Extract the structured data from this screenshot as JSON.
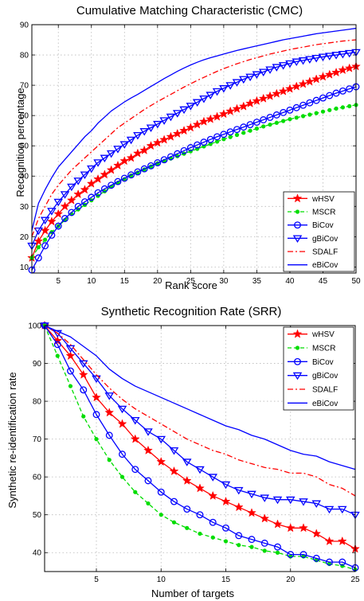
{
  "figure": {
    "background": "#ffffff"
  },
  "chart_data": [
    {
      "type": "line",
      "title": "Cumulative Matching Characteristic (CMC)",
      "xlabel": "Rank score",
      "ylabel": "Recognition percentage",
      "xlim": [
        1,
        50
      ],
      "ylim": [
        8,
        90
      ],
      "xticks": [
        5,
        10,
        15,
        20,
        25,
        30,
        35,
        40,
        45,
        50
      ],
      "yticks": [
        10,
        20,
        30,
        40,
        50,
        60,
        70,
        80,
        90
      ],
      "grid": true,
      "legend_position": "bottom-right",
      "series": [
        {
          "name": "wHSV",
          "color": "#ff0000",
          "line": "solid",
          "marker": "star",
          "x": [
            1,
            2,
            3,
            4,
            5,
            6,
            7,
            8,
            9,
            10,
            11,
            12,
            13,
            14,
            15,
            16,
            17,
            18,
            19,
            20,
            21,
            22,
            23,
            24,
            25,
            26,
            27,
            28,
            29,
            30,
            31,
            32,
            33,
            34,
            35,
            36,
            37,
            38,
            39,
            40,
            41,
            42,
            43,
            44,
            45,
            46,
            47,
            48,
            49,
            50
          ],
          "y": [
            13,
            18.5,
            22,
            25,
            27.5,
            30,
            32,
            34,
            35.5,
            37.5,
            39,
            40.5,
            42,
            43.5,
            45,
            46,
            47.5,
            48.5,
            50,
            51,
            52,
            53,
            54,
            55,
            56,
            57,
            58,
            58.8,
            59.6,
            60.5,
            61.4,
            62.2,
            63,
            64,
            64.8,
            65.6,
            66.4,
            67.2,
            68,
            68.8,
            69.6,
            70.4,
            71.2,
            72,
            72.8,
            73.5,
            74.2,
            75,
            75.6,
            76.2
          ]
        },
        {
          "name": "MSCR",
          "color": "#00dd00",
          "line": "dashed",
          "marker": "dot",
          "x": [
            1,
            2,
            3,
            4,
            5,
            6,
            7,
            8,
            9,
            10,
            11,
            12,
            13,
            14,
            15,
            16,
            17,
            18,
            19,
            20,
            21,
            22,
            23,
            24,
            25,
            26,
            27,
            28,
            29,
            30,
            31,
            32,
            33,
            34,
            35,
            36,
            37,
            38,
            39,
            40,
            41,
            42,
            43,
            44,
            45,
            46,
            47,
            48,
            49,
            50
          ],
          "y": [
            13,
            16.5,
            19,
            21.5,
            23.5,
            25.5,
            27.5,
            29,
            30.5,
            32,
            33.5,
            35,
            36.5,
            37.8,
            39,
            40.2,
            41.2,
            42.2,
            43.2,
            44.2,
            45,
            45.8,
            46.6,
            47.4,
            48.2,
            49,
            49.8,
            50.6,
            51.4,
            52.2,
            52.9,
            53.6,
            54.3,
            55,
            55.7,
            56.4,
            57,
            57.6,
            58.2,
            58.8,
            59.3,
            59.8,
            60.3,
            60.8,
            61.3,
            61.8,
            62.3,
            62.7,
            63.1,
            63.5
          ]
        },
        {
          "name": "BiCov",
          "color": "#0000ff",
          "line": "solid",
          "marker": "circle",
          "x": [
            1,
            2,
            3,
            4,
            5,
            6,
            7,
            8,
            9,
            10,
            11,
            12,
            13,
            14,
            15,
            16,
            17,
            18,
            19,
            20,
            21,
            22,
            23,
            24,
            25,
            26,
            27,
            28,
            29,
            30,
            31,
            32,
            33,
            34,
            35,
            36,
            37,
            38,
            39,
            40,
            41,
            42,
            43,
            44,
            45,
            46,
            47,
            48,
            49,
            50
          ],
          "y": [
            9,
            13,
            17,
            20.5,
            23.5,
            26,
            28,
            30,
            31.5,
            33,
            34.5,
            35.8,
            37,
            38.2,
            39.3,
            40.4,
            41.4,
            42.4,
            43.4,
            44.4,
            45.4,
            46.4,
            47.4,
            48.4,
            49.4,
            50.3,
            51.2,
            52.1,
            53,
            53.8,
            54.6,
            55.4,
            56.2,
            57,
            57.8,
            58.6,
            59.4,
            60.2,
            61,
            61.8,
            62.6,
            63.4,
            64.2,
            65,
            65.8,
            66.6,
            67.4,
            68.1,
            68.8,
            69.5
          ]
        },
        {
          "name": "gBiCov",
          "color": "#0000ff",
          "line": "solid",
          "marker": "triangle-down",
          "x": [
            1,
            2,
            3,
            4,
            5,
            6,
            7,
            8,
            9,
            10,
            11,
            12,
            13,
            14,
            15,
            16,
            17,
            18,
            19,
            20,
            21,
            22,
            23,
            24,
            25,
            26,
            27,
            28,
            29,
            30,
            31,
            32,
            33,
            34,
            35,
            36,
            37,
            38,
            39,
            40,
            41,
            42,
            43,
            44,
            45,
            46,
            47,
            48,
            49,
            50
          ],
          "y": [
            17,
            22,
            25.5,
            28.5,
            31.5,
            34,
            36.5,
            38.5,
            40.5,
            42.5,
            44.5,
            46,
            47.5,
            49,
            50.5,
            52,
            53.5,
            54.8,
            56,
            57.2,
            58.4,
            59.6,
            60.8,
            62,
            63.2,
            64.4,
            65.6,
            66.8,
            68,
            69,
            70,
            71,
            72,
            72.8,
            73.6,
            74.4,
            75.2,
            76,
            76.6,
            77.2,
            77.8,
            78.2,
            78.6,
            79,
            79.4,
            79.7,
            80,
            80.3,
            80.6,
            80.9
          ]
        },
        {
          "name": "SDALF",
          "color": "#ff0000",
          "line": "dashdot",
          "marker": "none",
          "x": [
            1,
            2,
            3,
            4,
            5,
            6,
            7,
            8,
            9,
            10,
            11,
            12,
            13,
            14,
            15,
            16,
            17,
            18,
            19,
            20,
            21,
            22,
            23,
            24,
            25,
            26,
            27,
            28,
            29,
            30,
            31,
            32,
            33,
            34,
            35,
            36,
            37,
            38,
            39,
            40,
            41,
            42,
            43,
            44,
            45,
            46,
            47,
            48,
            49,
            50
          ],
          "y": [
            20,
            26,
            30,
            34,
            37,
            39.5,
            42,
            44,
            46,
            48,
            50,
            52,
            54,
            56,
            57.5,
            59,
            60.5,
            62,
            63.3,
            64.6,
            65.8,
            67,
            68.2,
            69.4,
            70.5,
            71.6,
            72.6,
            73.6,
            74.6,
            75.5,
            76.3,
            77.1,
            77.8,
            78.5,
            79.1,
            79.7,
            80.3,
            80.8,
            81.3,
            81.8,
            82.2,
            82.6,
            83,
            83.4,
            83.7,
            84,
            84.3,
            84.6,
            84.8,
            85
          ]
        },
        {
          "name": "eBiCov",
          "color": "#0000ff",
          "line": "solid",
          "marker": "none",
          "x": [
            1,
            2,
            3,
            4,
            5,
            6,
            7,
            8,
            9,
            10,
            11,
            12,
            13,
            14,
            15,
            16,
            17,
            18,
            19,
            20,
            21,
            22,
            23,
            24,
            25,
            26,
            27,
            28,
            29,
            30,
            31,
            32,
            33,
            34,
            35,
            36,
            37,
            38,
            39,
            40,
            41,
            42,
            43,
            44,
            45,
            46,
            47,
            48,
            49,
            50
          ],
          "y": [
            22,
            31,
            35.5,
            39.5,
            43,
            45.5,
            48,
            50.5,
            53,
            55,
            57.5,
            59.5,
            61.5,
            63,
            64.5,
            65.8,
            67,
            68.3,
            69.6,
            70.9,
            72.2,
            73.4,
            74.6,
            75.7,
            76.7,
            77.6,
            78.4,
            79.1,
            79.7,
            80.3,
            80.9,
            81.5,
            82,
            82.5,
            83,
            83.5,
            84,
            84.5,
            85,
            85.4,
            85.8,
            86.2,
            86.6,
            87,
            87.3,
            87.6,
            87.9,
            88.2,
            88.5,
            88.8
          ]
        }
      ]
    },
    {
      "type": "line",
      "title": "Synthetic Recognition Rate (SRR)",
      "xlabel": "Number of targets",
      "ylabel": "Synthetic re-identification rate",
      "xlim": [
        1,
        25
      ],
      "ylim": [
        35,
        100
      ],
      "xticks": [
        5,
        10,
        15,
        20,
        25
      ],
      "yticks": [
        40,
        50,
        60,
        70,
        80,
        90,
        100
      ],
      "grid": true,
      "legend_position": "top-right",
      "series": [
        {
          "name": "wHSV",
          "color": "#ff0000",
          "line": "solid",
          "marker": "star",
          "x": [
            1,
            2,
            3,
            4,
            5,
            6,
            7,
            8,
            9,
            10,
            11,
            12,
            13,
            14,
            15,
            16,
            17,
            18,
            19,
            20,
            21,
            22,
            23,
            24,
            25
          ],
          "y": [
            100,
            96,
            92,
            87,
            81,
            77,
            74,
            70,
            67,
            64,
            61.5,
            59,
            57,
            55,
            53.5,
            52,
            50.5,
            49,
            47.5,
            46.5,
            46.5,
            45,
            43,
            43,
            41
          ]
        },
        {
          "name": "MSCR",
          "color": "#00dd00",
          "line": "dashed",
          "marker": "dot",
          "x": [
            1,
            2,
            3,
            4,
            5,
            6,
            7,
            8,
            9,
            10,
            11,
            12,
            13,
            14,
            15,
            16,
            17,
            18,
            19,
            20,
            21,
            22,
            23,
            24,
            25
          ],
          "y": [
            100,
            92,
            84,
            76,
            70,
            64.5,
            60,
            56,
            53,
            50,
            48,
            46.5,
            45,
            44,
            43,
            42,
            41.5,
            40.5,
            40,
            39,
            39,
            38,
            37,
            36.5,
            35.5
          ]
        },
        {
          "name": "BiCov",
          "color": "#0000ff",
          "line": "solid",
          "marker": "circle",
          "x": [
            1,
            2,
            3,
            4,
            5,
            6,
            7,
            8,
            9,
            10,
            11,
            12,
            13,
            14,
            15,
            16,
            17,
            18,
            19,
            20,
            21,
            22,
            23,
            24,
            25
          ],
          "y": [
            100,
            95,
            88,
            83,
            76.5,
            71,
            66,
            62,
            59,
            56,
            53.5,
            51.5,
            50,
            48,
            46.5,
            44.5,
            43.5,
            42.5,
            41.5,
            39.5,
            39.5,
            38.5,
            37.5,
            37.5,
            36
          ]
        },
        {
          "name": "gBiCov",
          "color": "#0000ff",
          "line": "solid",
          "marker": "triangle-down",
          "x": [
            1,
            2,
            3,
            4,
            5,
            6,
            7,
            8,
            9,
            10,
            11,
            12,
            13,
            14,
            15,
            16,
            17,
            18,
            19,
            20,
            21,
            22,
            23,
            24,
            25
          ],
          "y": [
            100,
            98,
            94,
            90,
            86,
            81.5,
            78,
            75,
            72,
            70,
            67,
            64,
            62,
            60,
            58,
            56.5,
            55.5,
            54.5,
            54,
            54,
            53.5,
            53,
            51.5,
            51.5,
            50
          ]
        },
        {
          "name": "SDALF",
          "color": "#ff0000",
          "line": "dashdot",
          "marker": "none",
          "x": [
            1,
            2,
            3,
            4,
            5,
            6,
            7,
            8,
            9,
            10,
            11,
            12,
            13,
            14,
            15,
            16,
            17,
            18,
            19,
            20,
            21,
            22,
            23,
            24,
            25
          ],
          "y": [
            100,
            98,
            95,
            91,
            87,
            83.5,
            80.5,
            78,
            76,
            74,
            72,
            70,
            68.5,
            67,
            66,
            64.5,
            63.5,
            62.5,
            62,
            61,
            61,
            60,
            58,
            57,
            55
          ]
        },
        {
          "name": "eBiCov",
          "color": "#0000ff",
          "line": "solid",
          "marker": "none",
          "x": [
            1,
            2,
            3,
            4,
            5,
            6,
            7,
            8,
            9,
            10,
            11,
            12,
            13,
            14,
            15,
            16,
            17,
            18,
            19,
            20,
            21,
            22,
            23,
            24,
            25
          ],
          "y": [
            100,
            98.5,
            97,
            94.5,
            92,
            88.5,
            86,
            84,
            82.5,
            81,
            79.5,
            78,
            76.5,
            75,
            73.5,
            72.5,
            71,
            70,
            68.5,
            67,
            66,
            65.5,
            64,
            63,
            62
          ]
        }
      ]
    }
  ]
}
